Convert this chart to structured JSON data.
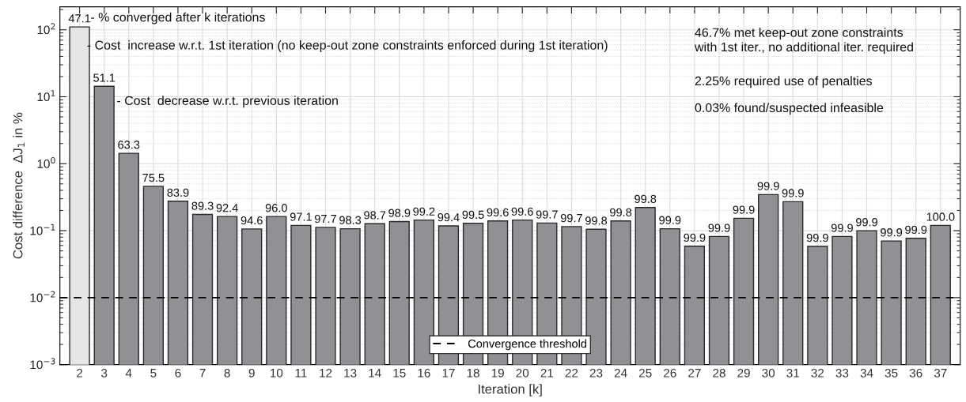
{
  "chart_data": {
    "type": "bar",
    "xlabel": "Iteration [k]",
    "ylabel": "Cost difference  ΔJ$_{1}$ in %",
    "categories": [
      "2",
      "3",
      "4",
      "5",
      "6",
      "7",
      "8",
      "9",
      "10",
      "11",
      "12",
      "13",
      "14",
      "15",
      "16",
      "17",
      "18",
      "19",
      "20",
      "21",
      "22",
      "23",
      "24",
      "25",
      "26",
      "27",
      "28",
      "29",
      "30",
      "31",
      "32",
      "33",
      "34",
      "35",
      "36",
      "37"
    ],
    "values": [
      110,
      14.3,
      1.43,
      0.46,
      0.276,
      0.175,
      0.163,
      0.106,
      0.163,
      0.12,
      0.112,
      0.107,
      0.127,
      0.137,
      0.144,
      0.118,
      0.129,
      0.14,
      0.144,
      0.13,
      0.115,
      0.105,
      0.14,
      0.222,
      0.107,
      0.0586,
      0.0819,
      0.153,
      0.346,
      0.271,
      0.0583,
      0.0819,
      0.1,
      0.0702,
      0.0769,
      0.12
    ],
    "colors": [
      "#e6e6e9",
      "#909095",
      "#909095",
      "#909095",
      "#909095",
      "#909095",
      "#909095",
      "#909095",
      "#909095",
      "#909095",
      "#909095",
      "#909095",
      "#909095",
      "#909095",
      "#909095",
      "#909095",
      "#909095",
      "#909095",
      "#909095",
      "#909095",
      "#909095",
      "#909095",
      "#909095",
      "#909095",
      "#909095",
      "#909095",
      "#909095",
      "#909095",
      "#909095",
      "#909095",
      "#909095",
      "#909095",
      "#909095",
      "#909095",
      "#909095",
      "#909095"
    ],
    "log": "y",
    "ylim": [
      0.001,
      220
    ],
    "yticks": [
      {
        "value": 0.001,
        "label": "10$^{−3}$"
      },
      {
        "value": 0.01,
        "label": "10$^{−2}$"
      },
      {
        "value": 0.1,
        "label": "10$^{−1}$"
      },
      {
        "value": 1,
        "label": "10$^{0}$"
      },
      {
        "value": 10,
        "label": "10$^{1}$"
      },
      {
        "value": 100,
        "label": "10$^{2}$"
      }
    ],
    "grid": true,
    "ref_lines": [
      {
        "axis": "y",
        "value": 0.01,
        "label": "Convergence threshold",
        "color": "#000000",
        "line_style": "dashed"
      }
    ],
    "legend": "bottom",
    "annotations": [
      "- % converged after k iterations",
      "- Cost  increase w.r.t. 1st iteration (no keep-out zone constraints enforced during 1st iteration)",
      "- Cost  decrease w.r.t. previous iteration",
      "46.7% met keep-out zone constraints\nwith 1st iter., no additional iter. required",
      "2.25% required use of penalties",
      "0.03% found/suspected infeasible",
      {
        "text": "47.1",
        "x": "2",
        "y": 110
      },
      {
        "text": "51.1",
        "x": "3",
        "y": 14.3
      },
      {
        "text": "63.3",
        "x": "4",
        "y": 1.43
      },
      {
        "text": "75.5",
        "x": "5",
        "y": 0.46
      },
      {
        "text": "83.9",
        "x": "6",
        "y": 0.276
      },
      {
        "text": "89.3",
        "x": "7",
        "y": 0.175
      },
      {
        "text": "92.4",
        "x": "8",
        "y": 0.163
      },
      {
        "text": "94.6",
        "x": "9",
        "y": 0.106
      },
      {
        "text": "96.0",
        "x": "10",
        "y": 0.163
      },
      {
        "text": "97.1",
        "x": "11",
        "y": 0.12
      },
      {
        "text": "97.7",
        "x": "12",
        "y": 0.112
      },
      {
        "text": "98.3",
        "x": "13",
        "y": 0.107
      },
      {
        "text": "98.7",
        "x": "14",
        "y": 0.127
      },
      {
        "text": "98.9",
        "x": "15",
        "y": 0.137
      },
      {
        "text": "99.2",
        "x": "16",
        "y": 0.144
      },
      {
        "text": "99.4",
        "x": "17",
        "y": 0.118
      },
      {
        "text": "99.5",
        "x": "18",
        "y": 0.129
      },
      {
        "text": "99.6",
        "x": "19",
        "y": 0.14
      },
      {
        "text": "99.6",
        "x": "20",
        "y": 0.144
      },
      {
        "text": "99.7",
        "x": "21",
        "y": 0.13
      },
      {
        "text": "99.7",
        "x": "22",
        "y": 0.115
      },
      {
        "text": "99.8",
        "x": "23",
        "y": 0.105
      },
      {
        "text": "99.8",
        "x": "24",
        "y": 0.14
      },
      {
        "text": "99.8",
        "x": "25",
        "y": 0.222
      },
      {
        "text": "99.9",
        "x": "26",
        "y": 0.107
      },
      {
        "text": "99.9",
        "x": "27",
        "y": 0.0586
      },
      {
        "text": "99.9",
        "x": "28",
        "y": 0.0819
      },
      {
        "text": "99.9",
        "x": "29",
        "y": 0.153
      },
      {
        "text": "99.9",
        "x": "30",
        "y": 0.346
      },
      {
        "text": "99.9",
        "x": "31",
        "y": 0.271
      },
      {
        "text": "99.9",
        "x": "32",
        "y": 0.0583
      },
      {
        "text": "99.9",
        "x": "33",
        "y": 0.0819
      },
      {
        "text": "99.9",
        "x": "34",
        "y": 0.1
      },
      {
        "text": "99.9",
        "x": "35",
        "y": 0.0702
      },
      {
        "text": "99.9",
        "x": "36",
        "y": 0.0769
      },
      {
        "text": "100.0",
        "x": "37",
        "y": 0.12
      }
    ]
  }
}
